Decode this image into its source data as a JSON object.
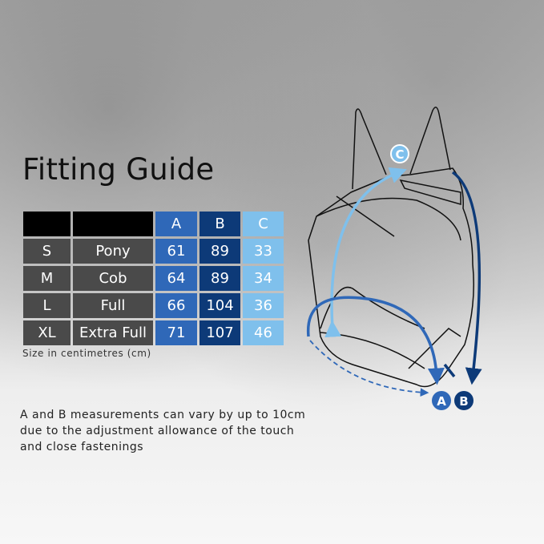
{
  "title": "Fitting Guide",
  "table": {
    "headers": [
      "",
      "",
      "A",
      "B",
      "C"
    ],
    "rows": [
      [
        "S",
        "Pony",
        "61",
        "89",
        "33"
      ],
      [
        "M",
        "Cob",
        "64",
        "89",
        "34"
      ],
      [
        "L",
        "Full",
        "66",
        "104",
        "36"
      ],
      [
        "XL",
        "Extra Full",
        "71",
        "107",
        "46"
      ]
    ]
  },
  "caption": "Size in centimetres (cm)",
  "note": "A and B measurements can vary by up to 10cm due to the adjustment allowance of the touch and close fastenings",
  "diagram": {
    "label_a": "A",
    "label_b": "B",
    "label_c": "C"
  },
  "colors": {
    "a": "#2f68b8",
    "b": "#0d3a78",
    "c": "#7fc0ec",
    "size_cells": "#4a4a4a"
  }
}
